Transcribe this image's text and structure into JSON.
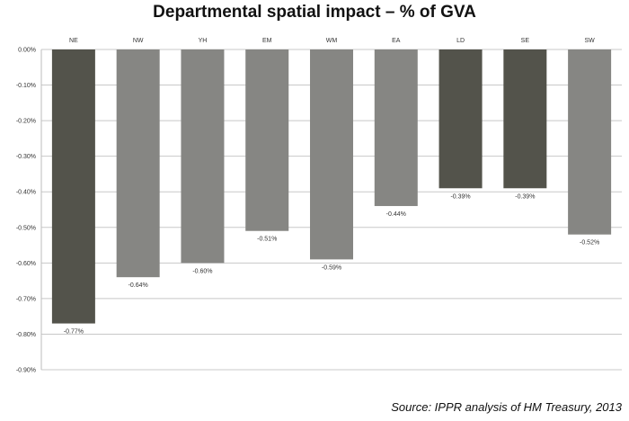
{
  "chart_data": {
    "type": "bar",
    "title": "Departmental spatial impact – % of GVA",
    "categories": [
      "NE",
      "NW",
      "YH",
      "EM",
      "WM",
      "EA",
      "LD",
      "SE",
      "SW"
    ],
    "values": [
      -0.77,
      -0.64,
      -0.6,
      -0.51,
      -0.59,
      -0.44,
      -0.39,
      -0.39,
      -0.52
    ],
    "data_labels": [
      "-0.77%",
      "-0.64%",
      "-0.60%",
      "-0.51%",
      "-0.59%",
      "-0.44%",
      "-0.39%",
      "-0.39%",
      "-0.52%"
    ],
    "yticks": [
      0,
      -0.1,
      -0.2,
      -0.3,
      -0.4,
      -0.5,
      -0.6,
      -0.7,
      -0.8,
      -0.9
    ],
    "ytick_labels": [
      "0.00%",
      "-0.10%",
      "-0.20%",
      "-0.30%",
      "-0.40%",
      "-0.50%",
      "-0.60%",
      "-0.70%",
      "-0.80%",
      "-0.90%"
    ],
    "ylim": [
      -0.9,
      0
    ],
    "grid": true,
    "xaxis_position": "top",
    "colors": {
      "dark": "#53534b",
      "light": "#868683",
      "bar_color_index": [
        0,
        1,
        1,
        1,
        1,
        1,
        0,
        0,
        1
      ]
    }
  },
  "source": "Source: IPPR analysis of HM Treasury, 2013"
}
